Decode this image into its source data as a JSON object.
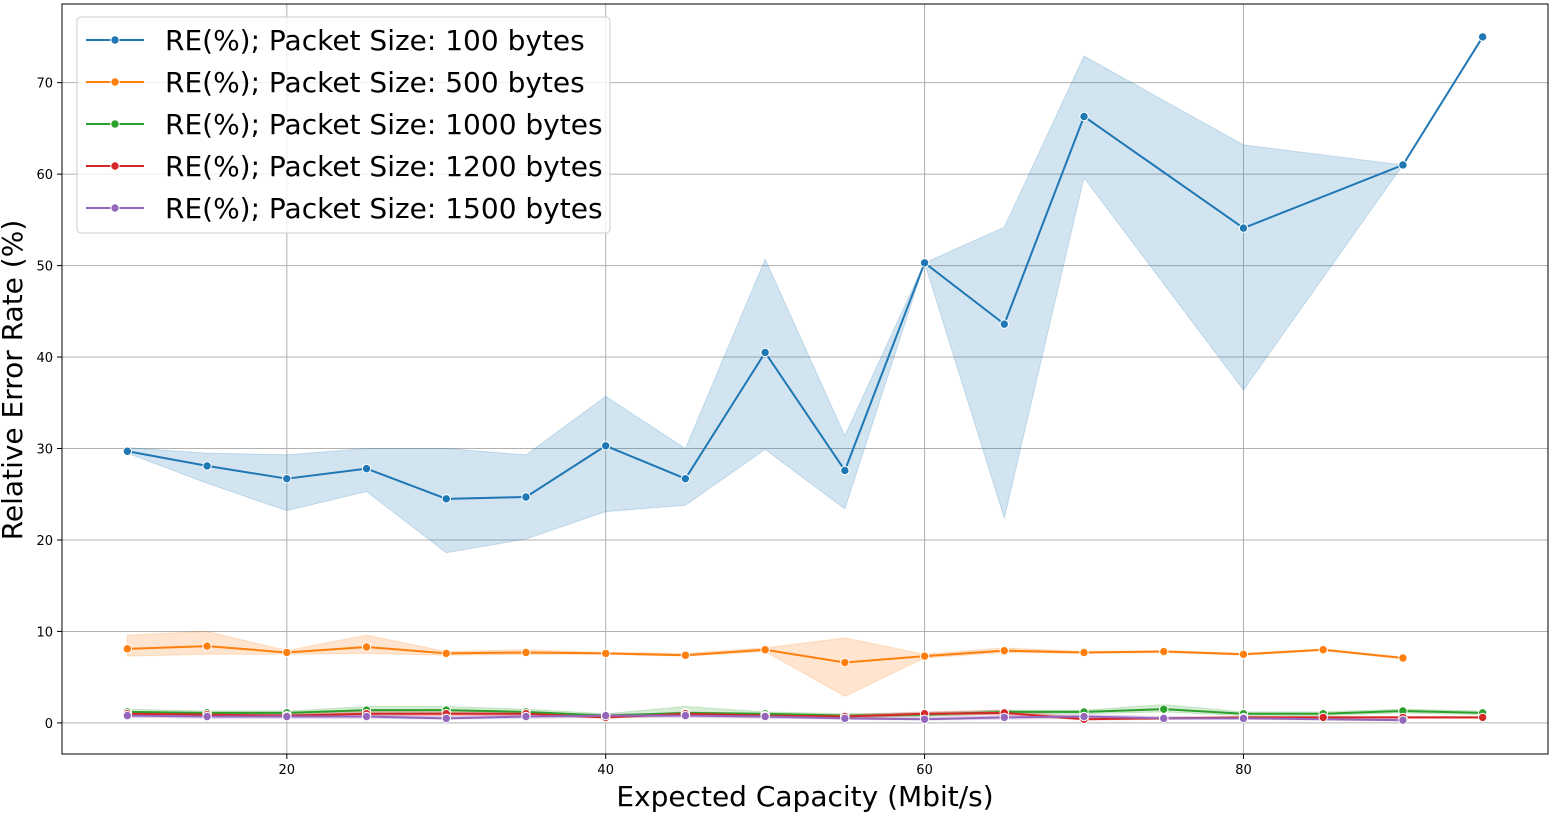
{
  "chart_data": {
    "type": "line",
    "xlabel": "Expected Capacity (Mbit/s)",
    "ylabel": "Relative Error Rate (%)",
    "xlim": [
      5.9,
      99.1
    ],
    "ylim": [
      -3.4,
      78.6
    ],
    "x_ticks": [
      "20",
      "40",
      "60",
      "80"
    ],
    "y_ticks": [
      "0",
      "10",
      "20",
      "30",
      "40",
      "50",
      "60",
      "70"
    ],
    "grid": true,
    "legend_position": "top-left",
    "series": [
      {
        "name": "RE(%); Packet Size: 100 bytes",
        "color": "#1f77b4",
        "x": [
          10,
          15,
          20,
          25,
          30,
          35,
          40,
          45,
          50,
          55,
          60,
          65,
          70,
          80,
          90,
          95
        ],
        "y": [
          29.7,
          28.1,
          26.7,
          27.8,
          24.5,
          24.7,
          30.3,
          26.7,
          40.5,
          27.6,
          50.3,
          43.6,
          66.3,
          54.1,
          61.0,
          75.0
        ],
        "lower": [
          29.5,
          26.2,
          23.2,
          25.3,
          18.6,
          20.1,
          23.1,
          23.8,
          29.9,
          23.4,
          50.3,
          22.4,
          59.6,
          36.4,
          61.0,
          75.0
        ],
        "upper": [
          30.1,
          29.5,
          29.3,
          30.0,
          30.0,
          29.3,
          35.7,
          30.0,
          50.7,
          31.4,
          50.3,
          54.2,
          72.9,
          63.2,
          61.0,
          75.0
        ]
      },
      {
        "name": "RE(%); Packet Size: 500 bytes",
        "color": "#ff7f0e",
        "x": [
          10,
          15,
          20,
          25,
          30,
          35,
          40,
          45,
          50,
          55,
          60,
          65,
          70,
          75,
          80,
          85,
          90
        ],
        "y": [
          8.1,
          8.4,
          7.7,
          8.3,
          7.6,
          7.7,
          7.6,
          7.4,
          8.0,
          6.6,
          7.3,
          7.9,
          7.7,
          7.8,
          7.5,
          8.0,
          7.1
        ],
        "lower": [
          7.3,
          7.5,
          7.5,
          7.6,
          7.4,
          7.5,
          7.5,
          7.3,
          7.8,
          2.9,
          7.1,
          7.7,
          7.6,
          7.7,
          7.4,
          7.9,
          7.0
        ],
        "upper": [
          9.6,
          10.0,
          7.9,
          9.6,
          7.8,
          8.0,
          7.7,
          7.6,
          8.2,
          9.3,
          7.5,
          8.2,
          7.8,
          7.9,
          7.6,
          8.1,
          7.2
        ]
      },
      {
        "name": "RE(%); Packet Size: 1000 bytes",
        "color": "#2ca02c",
        "x": [
          10,
          15,
          20,
          25,
          30,
          35,
          40,
          45,
          50,
          55,
          60,
          65,
          70,
          75,
          80,
          85,
          90,
          95
        ],
        "y": [
          1.2,
          1.1,
          1.1,
          1.4,
          1.4,
          1.2,
          0.8,
          1.1,
          1.0,
          0.8,
          0.9,
          1.2,
          1.2,
          1.5,
          1.0,
          1.0,
          1.3,
          1.1
        ],
        "lower": [
          1.0,
          0.9,
          0.9,
          1.1,
          1.1,
          1.0,
          0.6,
          0.8,
          0.8,
          0.6,
          0.7,
          1.0,
          1.0,
          1.2,
          0.8,
          0.8,
          1.1,
          0.9
        ],
        "upper": [
          1.5,
          1.3,
          1.3,
          1.8,
          1.8,
          1.5,
          1.0,
          1.8,
          1.2,
          1.0,
          1.1,
          1.4,
          1.4,
          2.0,
          1.2,
          1.2,
          1.5,
          1.3
        ]
      },
      {
        "name": "RE(%); Packet Size: 1200 bytes",
        "color": "#d62728",
        "x": [
          10,
          15,
          20,
          25,
          30,
          35,
          40,
          45,
          50,
          55,
          60,
          65,
          70,
          75,
          80,
          85,
          90,
          95
        ],
        "y": [
          1.0,
          0.9,
          0.8,
          1.0,
          1.0,
          1.0,
          0.6,
          1.0,
          0.8,
          0.7,
          1.0,
          1.1,
          0.4,
          0.5,
          0.6,
          0.6,
          0.6,
          0.6
        ],
        "lower": [
          0.8,
          0.7,
          0.6,
          0.8,
          0.8,
          0.8,
          0.5,
          0.8,
          0.6,
          0.5,
          0.8,
          0.9,
          0.3,
          0.4,
          0.5,
          0.5,
          0.5,
          0.5
        ],
        "upper": [
          1.2,
          1.1,
          1.0,
          1.3,
          1.2,
          1.2,
          0.7,
          1.2,
          1.0,
          0.9,
          1.2,
          1.4,
          0.6,
          0.6,
          0.7,
          0.7,
          0.7,
          0.7
        ]
      },
      {
        "name": "RE(%); Packet Size: 1500 bytes",
        "color": "#9467bd",
        "x": [
          10,
          15,
          20,
          25,
          30,
          35,
          40,
          45,
          50,
          55,
          60,
          65,
          70,
          75,
          80,
          90
        ],
        "y": [
          0.8,
          0.7,
          0.7,
          0.7,
          0.5,
          0.7,
          0.8,
          0.8,
          0.7,
          0.5,
          0.4,
          0.6,
          0.7,
          0.5,
          0.5,
          0.3
        ],
        "lower": [
          0.6,
          0.5,
          0.5,
          0.5,
          0.4,
          0.5,
          0.6,
          0.6,
          0.5,
          0.4,
          0.3,
          0.4,
          0.5,
          0.4,
          0.4,
          0.2
        ],
        "upper": [
          1.0,
          0.9,
          0.9,
          0.9,
          0.7,
          0.9,
          1.0,
          1.0,
          0.9,
          0.7,
          0.6,
          0.8,
          0.9,
          0.7,
          0.6,
          0.4
        ]
      }
    ]
  }
}
